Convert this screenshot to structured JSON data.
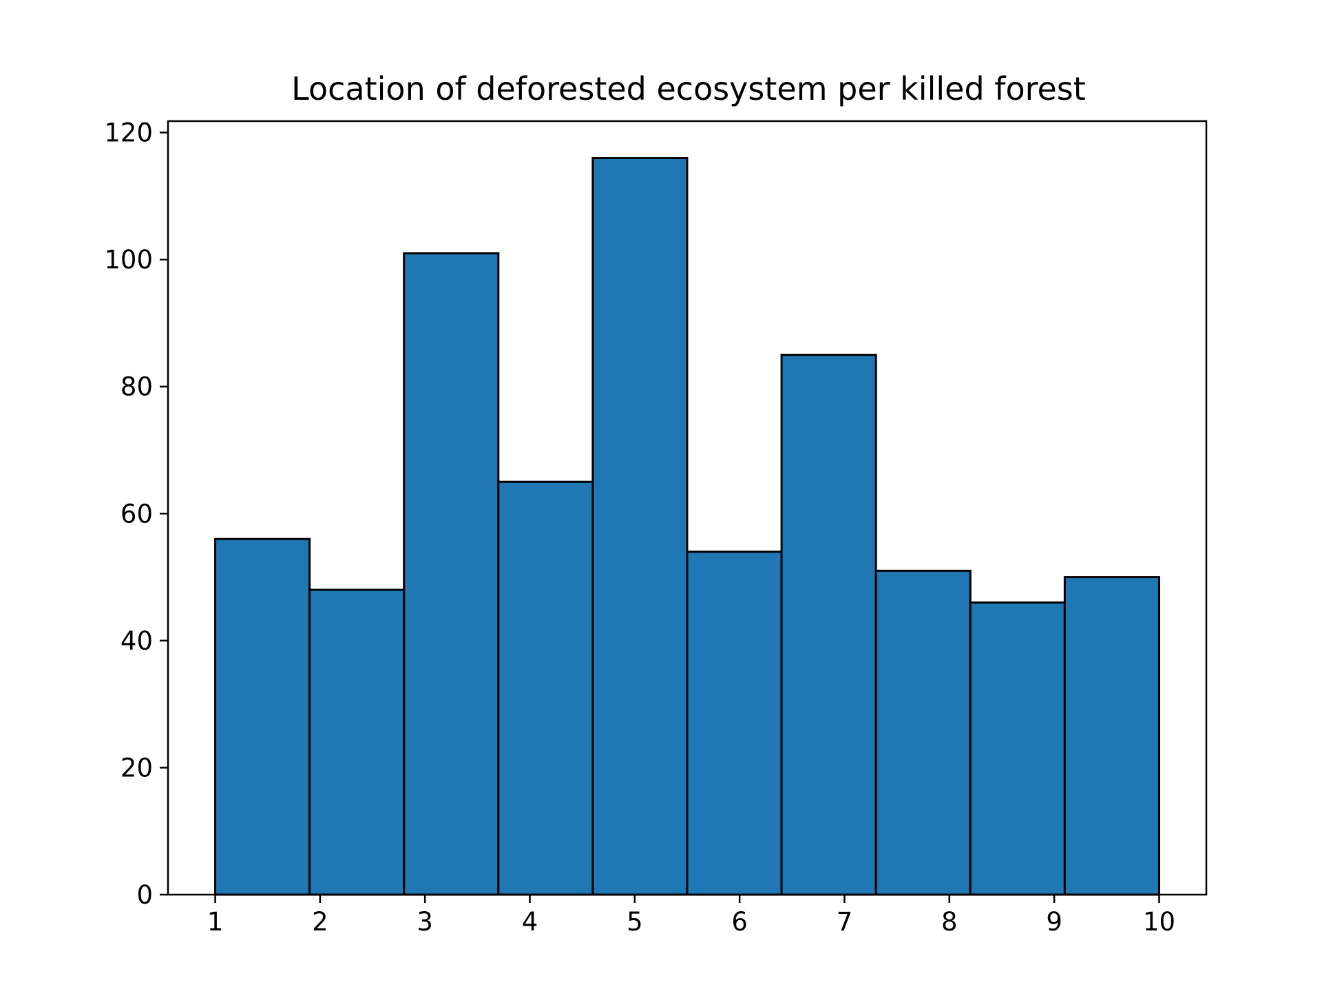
{
  "chart_data": {
    "type": "bar",
    "title": "Location of deforested ecosystem per killed forest",
    "xlabel": "",
    "ylabel": "",
    "bin_edges": [
      1,
      1.9,
      2.8,
      3.7,
      4.6,
      5.5,
      6.4,
      7.3,
      8.2,
      9.1,
      10
    ],
    "values": [
      56,
      48,
      101,
      65,
      116,
      54,
      85,
      51,
      46,
      50
    ],
    "xlim": [
      0.55,
      10.45
    ],
    "ylim": [
      0,
      121.8
    ],
    "xticks": [
      1,
      2,
      3,
      4,
      5,
      6,
      7,
      8,
      9,
      10
    ],
    "xtick_labels": [
      "1",
      "2",
      "3",
      "4",
      "5",
      "6",
      "7",
      "8",
      "9",
      "10"
    ],
    "yticks": [
      0,
      20,
      40,
      60,
      80,
      100,
      120
    ],
    "ytick_labels": [
      "0",
      "20",
      "40",
      "60",
      "80",
      "100",
      "120"
    ],
    "bar_color": "#1f77b4",
    "edge_color": "#000000",
    "grid": false,
    "legend": "none"
  }
}
